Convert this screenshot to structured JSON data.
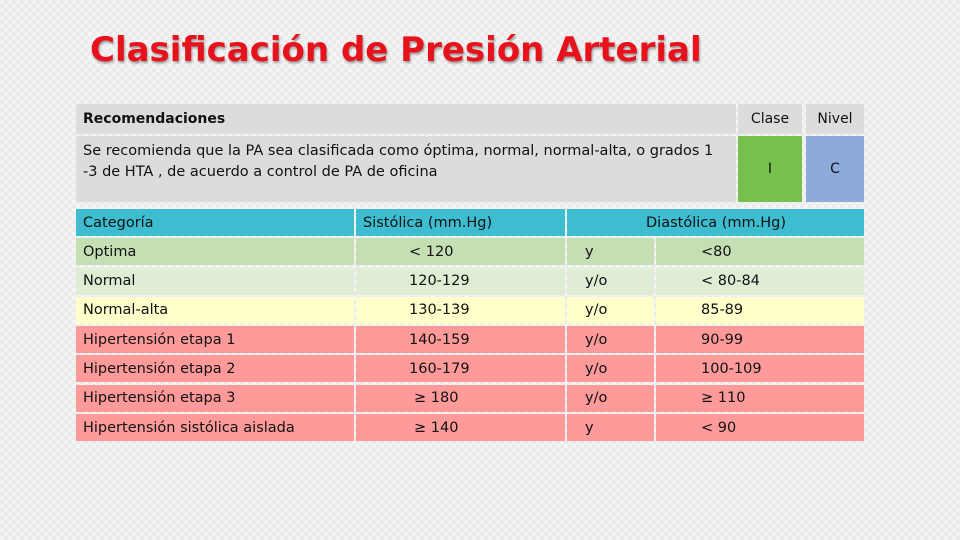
{
  "title": "Clasificación de Presión Arterial",
  "recommendation": {
    "headers": {
      "recomendaciones": "Recomendaciones",
      "clase": "Clase",
      "nivel": "Nivel"
    },
    "text": "Se recomienda que la PA sea clasificada como óptima, normal, normal-alta, o grados 1 -3 de HTA , de acuerdo a control de PA de oficina",
    "clase": "I",
    "nivel": "C",
    "colors": {
      "header_bg": "#dcdcdc",
      "clase_bg": "#78c04e",
      "nivel_bg": "#8eaadb"
    }
  },
  "classification": {
    "headers": {
      "categoria": "Categoría",
      "sistolica": "Sistólica (mm.Hg)",
      "conector": "",
      "diastolica": "Diastólica (mm.Hg)"
    },
    "rows": [
      {
        "categoria": "Optima",
        "sistolica": "< 120",
        "conector": "y",
        "diastolica": "<80"
      },
      {
        "categoria": "Normal",
        "sistolica": "120-129",
        "conector": "y/o",
        "diastolica": "< 80-84"
      },
      {
        "categoria": "Normal-alta",
        "sistolica": "130-139",
        "conector": "y/o",
        "diastolica": "85-89"
      },
      {
        "categoria": "Hipertensión etapa 1",
        "sistolica": "140-159",
        "conector": "y/o",
        "diastolica": "90-99"
      },
      {
        "categoria": "Hipertensión etapa 2",
        "sistolica": "160-179",
        "conector": "y/o",
        "diastolica": "100-109"
      },
      {
        "categoria": "Hipertensión etapa 3",
        "sistolica": "≥ 180",
        "conector": "y/o",
        "diastolica": "≥ 110"
      },
      {
        "categoria": "Hipertensión sistólica aislada",
        "sistolica": "≥ 140",
        "conector": "y",
        "diastolica": "< 90"
      }
    ],
    "colors": {
      "header": "#3ebcd0",
      "optima": "#c4dfb3",
      "normal": "#dfedd5",
      "normal_alta": "#ffffcc",
      "hipertension": "#fe9a9a"
    }
  }
}
